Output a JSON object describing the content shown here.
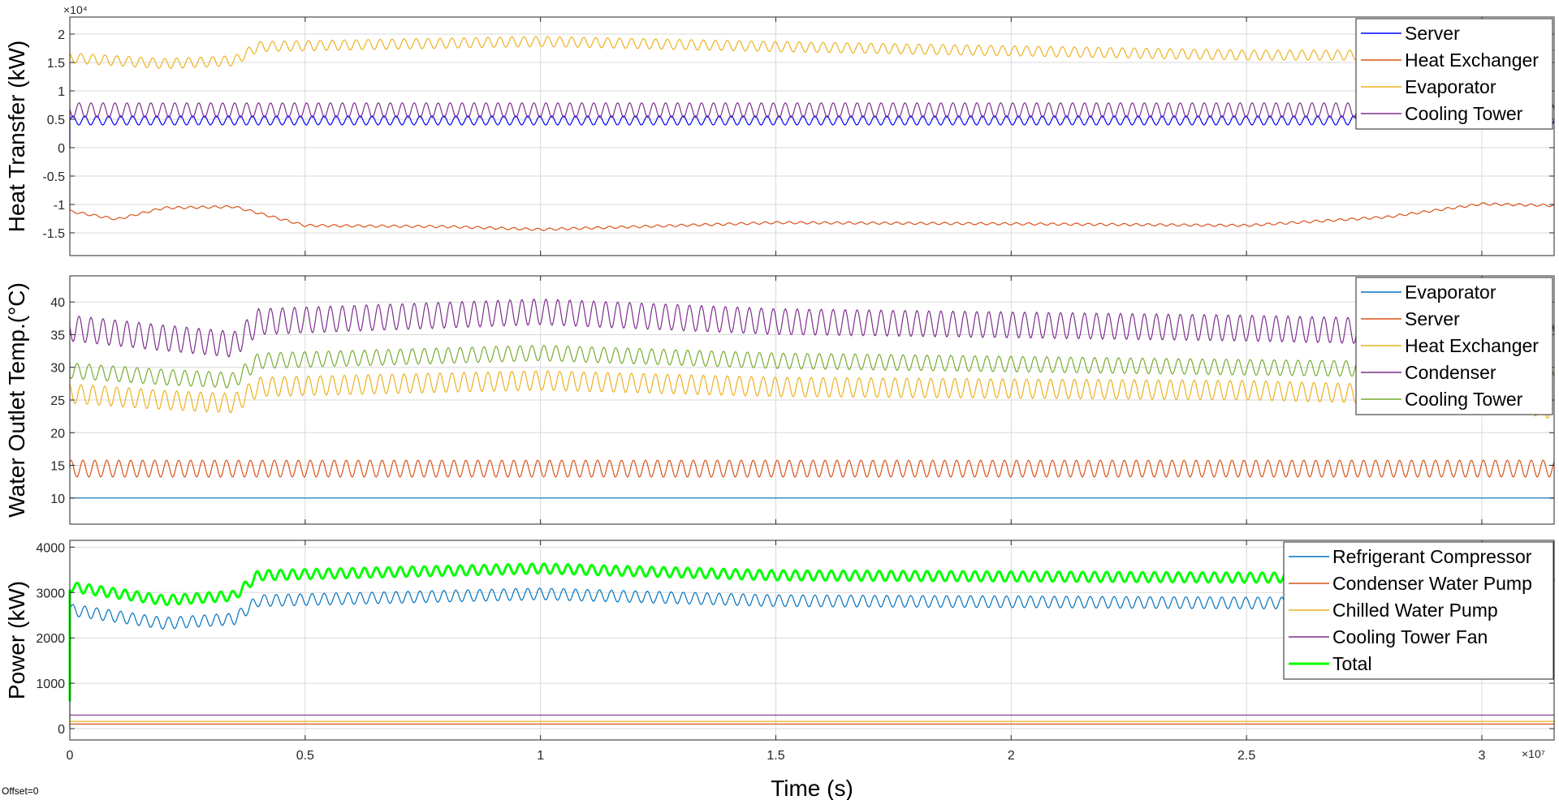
{
  "offset_label": "Offset=0",
  "chart_data": [
    {
      "type": "line",
      "ylabel": "Heat Transfer (kW)",
      "xlabel": "",
      "xlim": [
        0,
        31536000
      ],
      "ylim": [
        -19000,
        23000
      ],
      "y_exponent": "×10⁴",
      "yticks": [
        -15000,
        -10000,
        -5000,
        0,
        5000,
        10000,
        15000,
        20000
      ],
      "ytick_labels": [
        "-1.5",
        "-1",
        "-0.5",
        "0",
        "0.5",
        "1",
        "1.5",
        "2"
      ],
      "xticks": [
        0,
        5000000,
        10000000,
        15000000,
        20000000,
        25000000,
        30000000
      ],
      "grid": true,
      "legend_position": "top-right",
      "series": [
        {
          "name": "Server",
          "color": "#0000ff",
          "center": 4800,
          "amplitude": 800,
          "drift": [],
          "init": 0
        },
        {
          "name": "Heat Exchanger",
          "color": "#d95319",
          "center": -13200,
          "amplitude": 200,
          "drift": [
            [
              0,
              2000
            ],
            [
              1000000,
              600
            ],
            [
              2000000,
              2600
            ],
            [
              3500000,
              2800
            ],
            [
              5000000,
              -500
            ],
            [
              8000000,
              -700
            ],
            [
              10000000,
              -1200
            ],
            [
              15000000,
              0
            ],
            [
              20000000,
              -200
            ],
            [
              25000000,
              -500
            ],
            [
              28000000,
              1000
            ],
            [
              30000000,
              3300
            ],
            [
              31536000,
              3000
            ]
          ],
          "init": -6000
        },
        {
          "name": "Evaporator",
          "color": "#edb120",
          "center": 17800,
          "amplitude": 900,
          "drift": [
            [
              0,
              -2000
            ],
            [
              2000000,
              -3000
            ],
            [
              3500000,
              -2500
            ],
            [
              4000000,
              0
            ],
            [
              10000000,
              900
            ],
            [
              15000000,
              0
            ],
            [
              25000000,
              -1500
            ],
            [
              31536000,
              -1500
            ]
          ],
          "init": 5000
        },
        {
          "name": "Cooling Tower",
          "color": "#7e2f8e",
          "center": 6600,
          "amplitude": 1300,
          "drift": [],
          "init": 0
        }
      ]
    },
    {
      "type": "line",
      "ylabel": "Water Outlet Temp.(°C)",
      "xlabel": "",
      "xlim": [
        0,
        31536000
      ],
      "ylim": [
        6,
        44
      ],
      "yticks": [
        10,
        15,
        20,
        25,
        30,
        35,
        40
      ],
      "ytick_labels": [
        "10",
        "15",
        "20",
        "25",
        "30",
        "35",
        "40"
      ],
      "xticks": [
        0,
        5000000,
        10000000,
        15000000,
        20000000,
        25000000,
        30000000
      ],
      "grid": true,
      "legend_position": "top-right",
      "series": [
        {
          "name": "Evaporator",
          "color": "#0072bd",
          "center": 10,
          "amplitude": 0,
          "drift": [],
          "init": 10
        },
        {
          "name": "Server",
          "color": "#d95319",
          "center": 14.5,
          "amplitude": 1.3,
          "drift": [],
          "init": 14.5
        },
        {
          "name": "Heat Exchanger",
          "color": "#edb120",
          "center": 27,
          "amplitude": 1.5,
          "drift": [
            [
              0,
              -1
            ],
            [
              2000000,
              -2
            ],
            [
              3500000,
              -2.5
            ],
            [
              4000000,
              0
            ],
            [
              10000000,
              1
            ],
            [
              15000000,
              0
            ],
            [
              25000000,
              -0.5
            ],
            [
              30000000,
              -1.5
            ],
            [
              31536000,
              -3.5
            ]
          ],
          "init": 27
        },
        {
          "name": "Condenser",
          "color": "#7e2f8e",
          "center": 37,
          "amplitude": 2.0,
          "drift": [
            [
              0,
              -1
            ],
            [
              2000000,
              -2.5
            ],
            [
              3500000,
              -3.5
            ],
            [
              4000000,
              0
            ],
            [
              10000000,
              1.5
            ],
            [
              15000000,
              0
            ],
            [
              25000000,
              -1
            ],
            [
              31536000,
              -2
            ]
          ],
          "init": 37
        },
        {
          "name": "Cooling Tower",
          "color": "#77ac30",
          "center": 31,
          "amplitude": 1.2,
          "drift": [
            [
              0,
              -1.5
            ],
            [
              2000000,
              -2.5
            ],
            [
              3500000,
              -3
            ],
            [
              4000000,
              0
            ],
            [
              10000000,
              1.2
            ],
            [
              15000000,
              0
            ],
            [
              25000000,
              -1
            ],
            [
              31536000,
              -1.5
            ]
          ],
          "init": 31
        }
      ]
    },
    {
      "type": "line",
      "ylabel": "Power (kW)",
      "xlabel": "Time (s)",
      "xlim": [
        0,
        31536000
      ],
      "ylim": [
        -250,
        4150
      ],
      "yticks": [
        0,
        1000,
        2000,
        3000,
        4000
      ],
      "ytick_labels": [
        "0",
        "1000",
        "2000",
        "3000",
        "4000"
      ],
      "xticks": [
        0,
        5000000,
        10000000,
        15000000,
        20000000,
        25000000,
        30000000
      ],
      "xtick_labels": [
        "0",
        "0.5",
        "1",
        "1.5",
        "2",
        "2.5",
        "3"
      ],
      "x_exponent": "×10⁷",
      "grid": true,
      "legend_position": "top-right",
      "series": [
        {
          "name": "Refrigerant Compressor",
          "color": "#0072bd",
          "center": 2820,
          "amplitude": 130,
          "drift": [
            [
              0,
              -200
            ],
            [
              2000000,
              -500
            ],
            [
              3500000,
              -400
            ],
            [
              4000000,
              0
            ],
            [
              10000000,
              150
            ],
            [
              15000000,
              0
            ],
            [
              25000000,
              -50
            ],
            [
              31536000,
              -50
            ]
          ],
          "init": 0
        },
        {
          "name": "Condenser Water Pump",
          "color": "#d95319",
          "center": 100,
          "amplitude": 0,
          "drift": [],
          "init": 100
        },
        {
          "name": "Chilled Water Pump",
          "color": "#edb120",
          "center": 160,
          "amplitude": 0,
          "drift": [],
          "init": 160
        },
        {
          "name": "Cooling Tower Fan",
          "color": "#7e2f8e",
          "center": 300,
          "amplitude": 0,
          "drift": [],
          "init": 300
        },
        {
          "name": "Total",
          "color": "#00ff00",
          "center": 3380,
          "amplitude": 110,
          "drift": [
            [
              0,
              -250
            ],
            [
              2000000,
              -550
            ],
            [
              3500000,
              -450
            ],
            [
              4000000,
              0
            ],
            [
              10000000,
              150
            ],
            [
              15000000,
              0
            ],
            [
              25000000,
              -50
            ],
            [
              31536000,
              -50
            ]
          ],
          "init": 600,
          "bold": true
        }
      ]
    }
  ]
}
